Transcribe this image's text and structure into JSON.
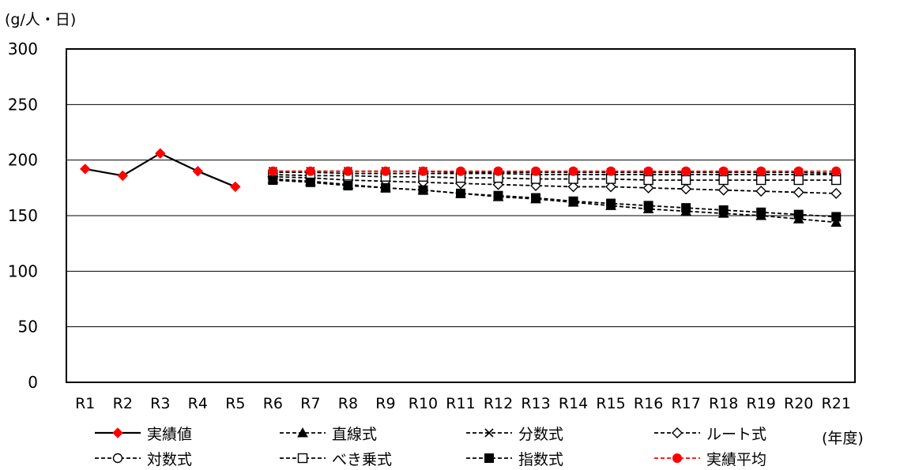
{
  "chart_data": {
    "type": "line",
    "unit_label": "(g/人・日)",
    "x_unit_label": "(年度)",
    "categories": [
      "R1",
      "R2",
      "R3",
      "R4",
      "R5",
      "R6",
      "R7",
      "R8",
      "R9",
      "R10",
      "R11",
      "R12",
      "R13",
      "R14",
      "R15",
      "R16",
      "R17",
      "R18",
      "R19",
      "R20",
      "R21"
    ],
    "ylim": [
      0,
      300
    ],
    "yticks": [
      0,
      50,
      100,
      150,
      200,
      250,
      300
    ],
    "grid": true,
    "legend_position": "bottom",
    "series": [
      {
        "name": "実績値",
        "line": "solid",
        "color": "#000000",
        "marker": "diamond",
        "marker_color": "#ff0000",
        "values": [
          192,
          186,
          206,
          190,
          176,
          null,
          null,
          null,
          null,
          null,
          null,
          null,
          null,
          null,
          null,
          null,
          null,
          null,
          null,
          null,
          null
        ]
      },
      {
        "name": "直線式",
        "line": "dashed",
        "color": "#000000",
        "marker": "triangle",
        "marker_color": "#000000",
        "values": [
          null,
          null,
          null,
          null,
          null,
          183,
          181,
          178,
          175,
          173,
          170,
          167,
          165,
          162,
          159,
          156,
          154,
          152,
          150,
          147,
          144
        ]
      },
      {
        "name": "分数式",
        "line": "dashed",
        "color": "#000000",
        "marker": "x",
        "marker_color": "#000000",
        "values": [
          null,
          null,
          null,
          null,
          null,
          190,
          190,
          190,
          190,
          190,
          189,
          189,
          189,
          189,
          189,
          189,
          189,
          189,
          189,
          189,
          188
        ]
      },
      {
        "name": "ルート式",
        "line": "dashed",
        "color": "#000000",
        "marker": "diamond-open",
        "marker_color": "#000000",
        "values": [
          null,
          null,
          null,
          null,
          null,
          185,
          184,
          182,
          181,
          180,
          179,
          178,
          177,
          176,
          176,
          175,
          174,
          173,
          172,
          171,
          170
        ]
      },
      {
        "name": "対数式",
        "line": "dashed",
        "color": "#000000",
        "marker": "circle-open",
        "marker_color": "#000000",
        "values": [
          null,
          null,
          null,
          null,
          null,
          189,
          189,
          188,
          188,
          188,
          188,
          188,
          187,
          187,
          187,
          187,
          187,
          187,
          187,
          187,
          187
        ]
      },
      {
        "name": "べき乗式",
        "line": "dashed",
        "color": "#000000",
        "marker": "square-open",
        "marker_color": "#000000",
        "values": [
          null,
          null,
          null,
          null,
          null,
          187,
          186,
          186,
          185,
          185,
          184,
          184,
          183,
          183,
          183,
          182,
          182,
          182,
          182,
          182,
          182
        ]
      },
      {
        "name": "指数式",
        "line": "dashed",
        "color": "#000000",
        "marker": "square",
        "marker_color": "#000000",
        "values": [
          null,
          null,
          null,
          null,
          null,
          182,
          180,
          177,
          175,
          173,
          170,
          168,
          166,
          163,
          161,
          159,
          157,
          155,
          153,
          151,
          149
        ]
      },
      {
        "name": "実績平均",
        "line": "dashed",
        "color": "#ff0000",
        "marker": "circle",
        "marker_color": "#ff0000",
        "values": [
          null,
          null,
          null,
          null,
          null,
          190,
          190,
          190,
          190,
          190,
          190,
          190,
          190,
          190,
          190,
          190,
          190,
          190,
          190,
          190,
          190
        ]
      }
    ]
  }
}
